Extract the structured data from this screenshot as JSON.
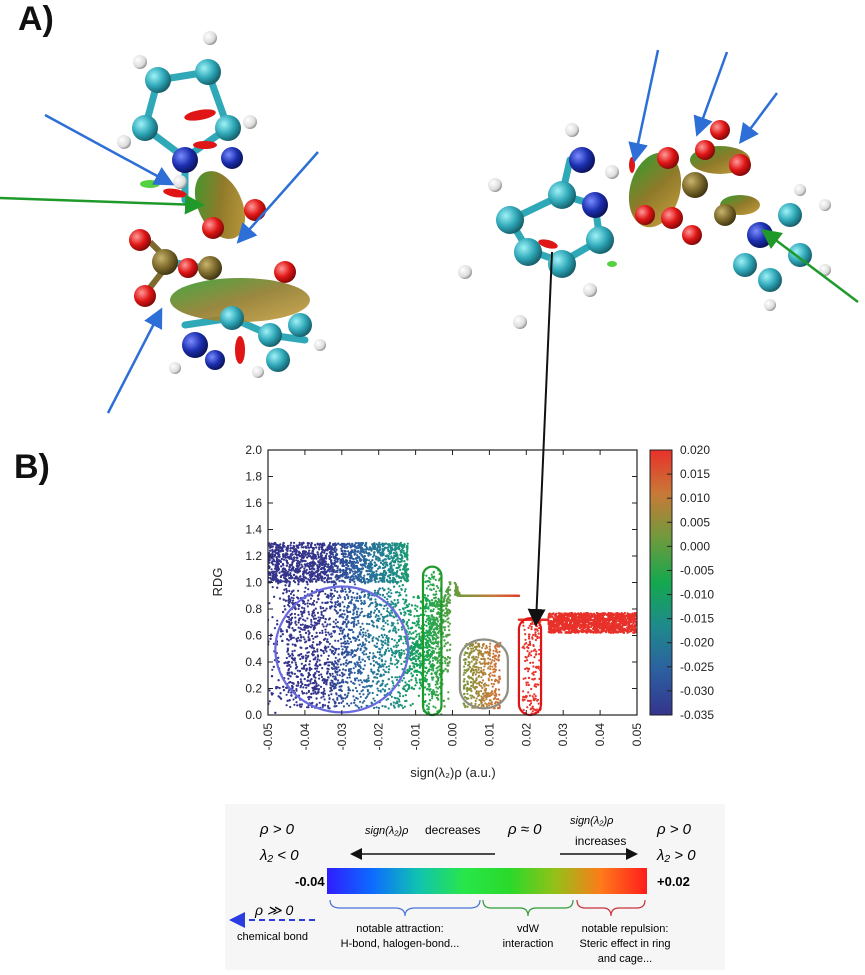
{
  "panels": {
    "a": "A)",
    "b": "B)"
  },
  "colors": {
    "carbon": "#2fa8b8",
    "hydrogen": "#e6e6e6",
    "nitrogen": "#1c2fb0",
    "oxygen": "#e01515",
    "phosphorus": "#7d6a2c",
    "blue_arrow": "#2d6fd6",
    "green_arrow": "#1f9a2a",
    "map_arrow": "#111111"
  },
  "chart_data": {
    "type": "scatter",
    "xlabel": "sign(λ₂)ρ (a.u.)",
    "ylabel": "RDG",
    "xlim": [
      -0.05,
      0.05
    ],
    "ylim": [
      0.0,
      2.0
    ],
    "x_ticks": [
      "-0.05",
      "-0.04",
      "-0.03",
      "-0.02",
      "-0.01",
      "0.00",
      "0.01",
      "0.02",
      "0.03",
      "0.04",
      "0.05"
    ],
    "y_ticks": [
      "0.0",
      "0.2",
      "0.4",
      "0.6",
      "0.8",
      "1.0",
      "1.2",
      "1.4",
      "1.6",
      "1.8",
      "2.0"
    ],
    "colorbar": {
      "range": [
        -0.035,
        0.02
      ],
      "ticks": [
        "0.020",
        "0.015",
        "0.010",
        "0.005",
        "0.000",
        "-0.005",
        "-0.010",
        "-0.015",
        "-0.020",
        "-0.025",
        "-0.030",
        "-0.035"
      ],
      "colors": [
        "#e8312a",
        "#c77a37",
        "#6f9a3d",
        "#14a84f",
        "#1f8a8c",
        "#2c5fa0",
        "#34348c"
      ]
    },
    "highlight_regions": [
      {
        "shape": "ellipse",
        "color": "#6a6ae0",
        "x": [
          -0.048,
          -0.012
        ],
        "y": [
          0.02,
          0.97
        ]
      },
      {
        "shape": "capsule",
        "color": "#1f9a2a",
        "x": [
          -0.008,
          -0.003
        ],
        "y": [
          0.0,
          1.12
        ]
      },
      {
        "shape": "capsule",
        "color": "#8f8f83",
        "x": [
          0.002,
          0.015
        ],
        "y": [
          0.05,
          0.57
        ]
      },
      {
        "shape": "capsule",
        "color": "#e01515",
        "x": [
          0.018,
          0.024
        ],
        "y": [
          0.0,
          0.73
        ]
      }
    ],
    "grid": false
  },
  "legend": {
    "left_cond_1": "ρ > 0",
    "left_cond_2": "λ₂ < 0",
    "decrease_label": "decreases",
    "center_cond": "ρ ≈ 0",
    "increase_label": "increases",
    "right_cond_1": "ρ > 0",
    "right_cond_2": "λ₂ > 0",
    "sign_expr": "sign(λ₂)ρ",
    "min_value": "-0.04",
    "max_value": "+0.02",
    "gradient": [
      "#2f1dff",
      "#0d6cff",
      "#10c3b0",
      "#28e64a",
      "#2ad92a",
      "#94c018",
      "#ff7a1a",
      "#ff1c1c"
    ],
    "bond_cond": "ρ ≫ 0",
    "chemical_bond": "chemical bond",
    "attraction_1": "notable attraction:",
    "attraction_2": "H-bond, halogen-bond...",
    "vdw_1": "vdW",
    "vdw_2": "interaction",
    "repulsion_1": "notable repulsion:",
    "repulsion_2": "Steric effect in ring",
    "repulsion_3": "and cage..."
  }
}
